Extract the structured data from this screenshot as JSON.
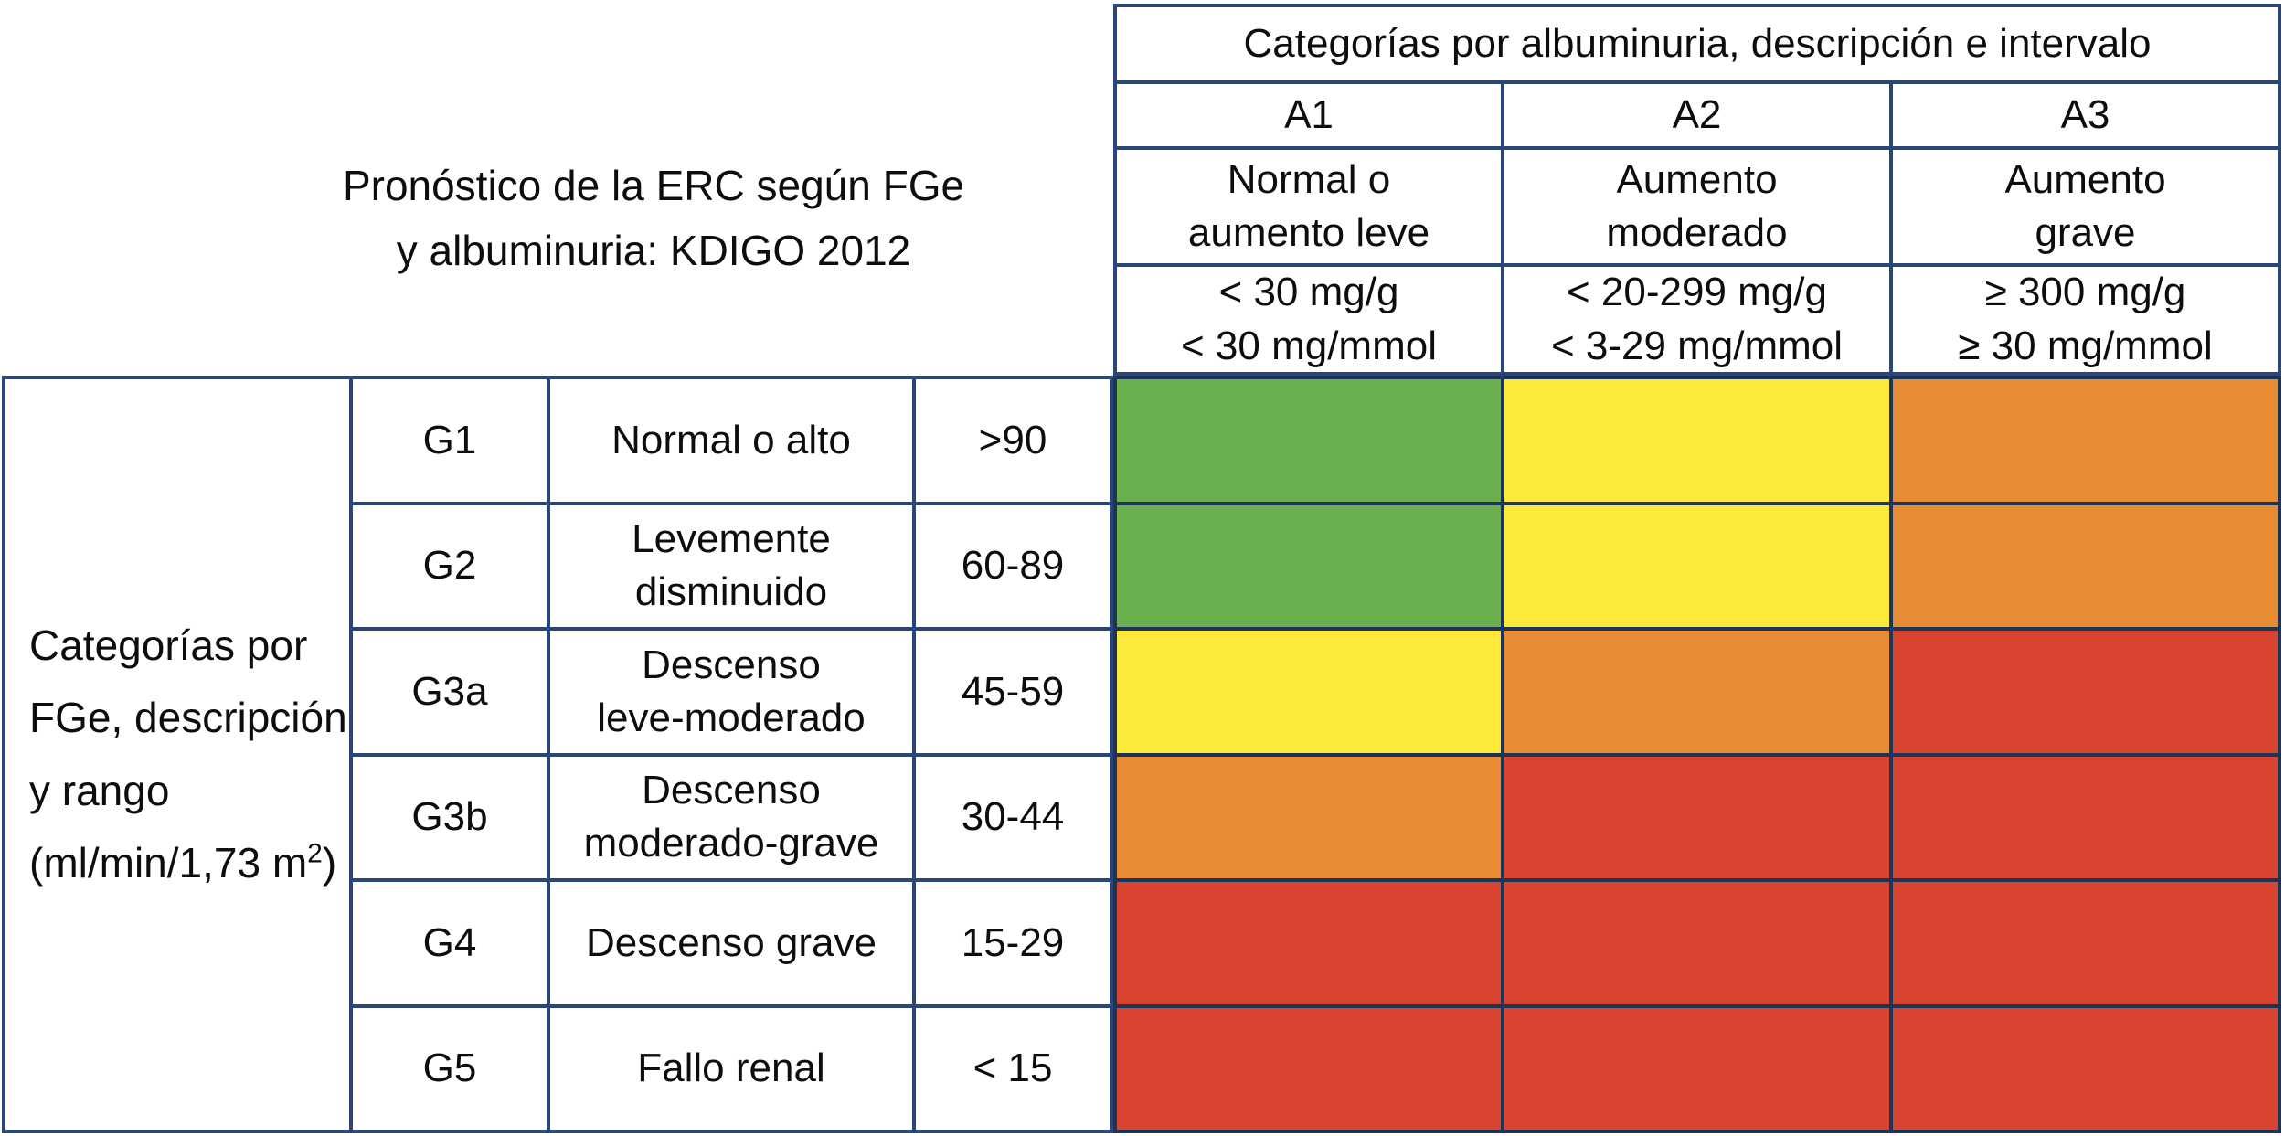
{
  "title": {
    "line1": "Pronóstico de la ERC según FGe",
    "line2": "y albuminuria: KDIGO 2012"
  },
  "albuminuria": {
    "header": "Categorías por albuminuria, descripción e intervalo",
    "columns": [
      {
        "code": "A1",
        "description": "Normal o\naumento leve",
        "interval": "< 30 mg/g\n< 30 mg/mmol"
      },
      {
        "code": "A2",
        "description": "Aumento\nmoderado",
        "interval": "< 20-299 mg/g\n< 3-29 mg/mmol"
      },
      {
        "code": "A3",
        "description": "Aumento\ngrave",
        "interval": "≥ 300 mg/g\n≥ 30 mg/mmol"
      }
    ]
  },
  "fge": {
    "axis_label_line1": "Categorías por",
    "axis_label_line2": "FGe, descripción",
    "axis_label_line3": "y rango",
    "axis_label_line4_prefix": "(ml/min/1,73 m",
    "axis_label_line4_sup": "2",
    "axis_label_line4_suffix": ")",
    "rows": [
      {
        "code": "G1",
        "description": "Normal o alto",
        "range": ">90"
      },
      {
        "code": "G2",
        "description": "Levemente\ndisminuido",
        "range": "60-89"
      },
      {
        "code": "G3a",
        "description": "Descenso\nleve-moderado",
        "range": "45-59"
      },
      {
        "code": "G3b",
        "description": "Descenso\nmoderado-grave",
        "range": "30-44"
      },
      {
        "code": "G4",
        "description": "Descenso grave",
        "range": "15-29"
      },
      {
        "code": "G5",
        "description": "Fallo renal",
        "range": "< 15"
      }
    ]
  },
  "colors": {
    "green": "#6ab04f",
    "yellow": "#fde93a",
    "orange": "#e98b32",
    "red": "#d94430",
    "border_navy": "#294677",
    "grid_navy": "#1d3357"
  },
  "chart_data": {
    "type": "heatmap",
    "title": "Pronóstico de la ERC según FGe y albuminuria: KDIGO 2012",
    "x_axis_label": "Categorías por albuminuria, descripción e intervalo",
    "y_axis_label": "Categorías por FGe, descripción y rango (ml/min/1,73 m2)",
    "x_categories": [
      "A1",
      "A2",
      "A3"
    ],
    "y_categories": [
      "G1",
      "G2",
      "G3a",
      "G3b",
      "G4",
      "G5"
    ],
    "values": [
      [
        "green",
        "yellow",
        "orange"
      ],
      [
        "green",
        "yellow",
        "orange"
      ],
      [
        "yellow",
        "orange",
        "red"
      ],
      [
        "orange",
        "red",
        "red"
      ],
      [
        "red",
        "red",
        "red"
      ],
      [
        "red",
        "red",
        "red"
      ]
    ],
    "legend_position": "none"
  }
}
